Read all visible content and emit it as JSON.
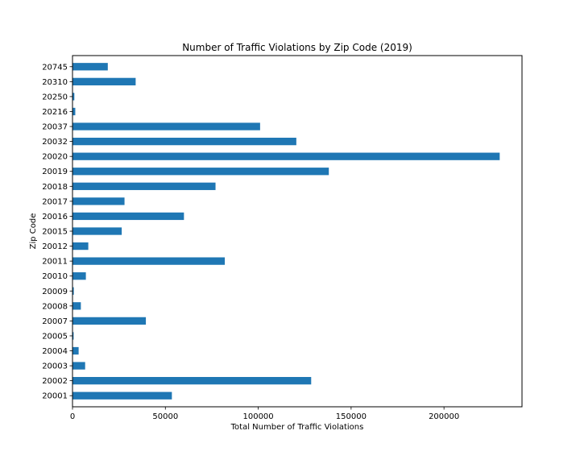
{
  "chart_data": {
    "type": "bar",
    "orientation": "horizontal",
    "title": "Number of Traffic Violations by Zip Code (2019)",
    "xlabel": "Total Number of Traffic Violations",
    "ylabel": "Zip Code",
    "xlim": [
      0,
      242000
    ],
    "x_ticks": [
      0,
      50000,
      100000,
      150000,
      200000
    ],
    "x_tick_labels": [
      "0",
      "50000",
      "100000",
      "150000",
      "200000"
    ],
    "grid": false,
    "bar_color": "#1f77b4",
    "categories": [
      "20001",
      "20002",
      "20003",
      "20004",
      "20005",
      "20007",
      "20008",
      "20009",
      "20010",
      "20011",
      "20012",
      "20015",
      "20016",
      "20017",
      "20018",
      "20019",
      "20020",
      "20032",
      "20037",
      "20216",
      "20250",
      "20310",
      "20745"
    ],
    "values": [
      53500,
      128500,
      6800,
      3300,
      600,
      39500,
      4500,
      700,
      7200,
      82000,
      8500,
      26500,
      60000,
      28000,
      77000,
      138000,
      230000,
      120500,
      101000,
      1500,
      1000,
      34000,
      19000
    ]
  }
}
